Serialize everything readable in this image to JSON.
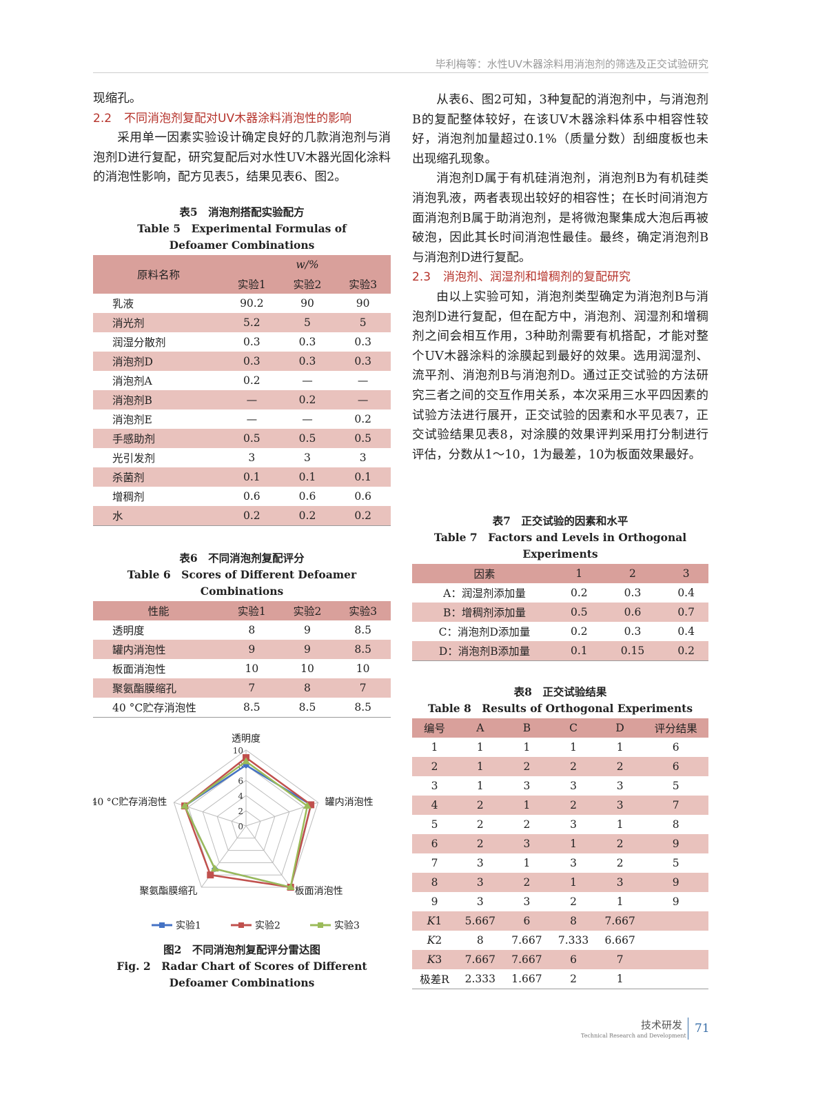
{
  "running_head": "毕利梅等：水性UV木器涂料用消泡剂的筛选及正交试验研究",
  "left": {
    "p0": "现缩孔。",
    "h22_num": "2.2",
    "h22": "不同消泡剂复配对UV木器涂料消泡性的影响",
    "p1": "采用单一因素实验设计确定良好的几款消泡剂与消泡剂D进行复配，研究复配后对水性UV木器光固化涂料的消泡性影响，配方见表5，结果见表6、图2。"
  },
  "right": {
    "p1": "从表6、图2可知，3种复配的消泡剂中，与消泡剂B的复配整体较好，在该UV木器涂料体系中相容性较好，消泡剂加量超过0.1%（质量分数）刮细度板也未出现缩孔现象。",
    "p2": "消泡剂D属于有机硅消泡剂，消泡剂B为有机硅类消泡乳液，两者表现出较好的相容性；在长时间消泡方面消泡剂B属于助消泡剂，是将微泡聚集成大泡后再被破泡，因此其长时间消泡性最佳。最终，确定消泡剂B与消泡剂D进行复配。",
    "h23_num": "2.3",
    "h23": "消泡剂、润湿剂和增稠剂的复配研究",
    "p3": "由以上实验可知，消泡剂类型确定为消泡剂B与消泡剂D进行复配，但在配方中，消泡剂、润湿剂和增稠剂之间会相互作用，3种助剂需要有机搭配，才能对整个UV木器涂料的涂膜起到最好的效果。选用润湿剂、流平剂、消泡剂B与消泡剂D。通过正交试验的方法研究三者之间的交互作用关系，本次采用三水平四因素的试验方法进行展开，正交试验的因素和水平见表7，正交试验结果见表8，对涂膜的效果评判采用打分制进行评估，分数从1～10，1为最差，10为板面效果最好。"
  },
  "table5": {
    "cap_cn": "表5　消泡剂搭配实验配方",
    "cap_en": "Table 5　Experimental Formulas of Defoamer Combinations",
    "h_name": "原料名称",
    "h_unit": "w/%",
    "cols": [
      "实验1",
      "实验2",
      "实验3"
    ],
    "rows": [
      [
        "乳液",
        "90.2",
        "90",
        "90"
      ],
      [
        "消光剂",
        "5.2",
        "5",
        "5"
      ],
      [
        "润湿分散剂",
        "0.3",
        "0.3",
        "0.3"
      ],
      [
        "消泡剂D",
        "0.3",
        "0.3",
        "0.3"
      ],
      [
        "消泡剂A",
        "0.2",
        "—",
        "—"
      ],
      [
        "消泡剂B",
        "—",
        "0.2",
        "—"
      ],
      [
        "消泡剂E",
        "—",
        "—",
        "0.2"
      ],
      [
        "手感助剂",
        "0.5",
        "0.5",
        "0.5"
      ],
      [
        "光引发剂",
        "3",
        "3",
        "3"
      ],
      [
        "杀菌剂",
        "0.1",
        "0.1",
        "0.1"
      ],
      [
        "增稠剂",
        "0.6",
        "0.6",
        "0.6"
      ],
      [
        "水",
        "0.2",
        "0.2",
        "0.2"
      ]
    ]
  },
  "table6": {
    "cap_cn": "表6　不同消泡剂复配评分",
    "cap_en": "Table 6　Scores of Different Defoamer Combinations",
    "header": [
      "性能",
      "实验1",
      "实验2",
      "实验3"
    ],
    "rows": [
      [
        "透明度",
        "8",
        "9",
        "8.5"
      ],
      [
        "罐内消泡性",
        "9",
        "9",
        "8.5"
      ],
      [
        "板面消泡性",
        "10",
        "10",
        "10"
      ],
      [
        "聚氨酯膜缩孔",
        "7",
        "8",
        "7"
      ],
      [
        "40 °C贮存消泡性",
        "8.5",
        "8.5",
        "8.5"
      ]
    ]
  },
  "table7": {
    "cap_cn": "表7　正交试验的因素和水平",
    "cap_en": "Table 7　Factors and Levels in Orthogonal Experiments",
    "header": [
      "因素",
      "1",
      "2",
      "3"
    ],
    "rows": [
      [
        "A：润湿剂添加量",
        "0.2",
        "0.3",
        "0.4"
      ],
      [
        "B：增稠剂添加量",
        "0.5",
        "0.6",
        "0.7"
      ],
      [
        "C：消泡剂D添加量",
        "0.2",
        "0.3",
        "0.4"
      ],
      [
        "D：消泡剂B添加量",
        "0.1",
        "0.15",
        "0.2"
      ]
    ]
  },
  "table8": {
    "cap_cn": "表8　正交试验结果",
    "cap_en": "Table 8　Results of Orthogonal Experiments",
    "header": [
      "编号",
      "A",
      "B",
      "C",
      "D",
      "评分结果"
    ],
    "rows": [
      [
        "1",
        "1",
        "1",
        "1",
        "1",
        "6"
      ],
      [
        "2",
        "1",
        "2",
        "2",
        "2",
        "6"
      ],
      [
        "3",
        "1",
        "3",
        "3",
        "3",
        "5"
      ],
      [
        "4",
        "2",
        "1",
        "2",
        "3",
        "7"
      ],
      [
        "5",
        "2",
        "2",
        "3",
        "1",
        "8"
      ],
      [
        "6",
        "2",
        "3",
        "1",
        "2",
        "9"
      ],
      [
        "7",
        "3",
        "1",
        "3",
        "2",
        "5"
      ],
      [
        "8",
        "3",
        "2",
        "1",
        "3",
        "9"
      ],
      [
        "9",
        "3",
        "3",
        "2",
        "1",
        "9"
      ],
      [
        "K1",
        "5.667",
        "6",
        "8",
        "7.667",
        ""
      ],
      [
        "K2",
        "8",
        "7.667",
        "7.333",
        "6.667",
        ""
      ],
      [
        "K3",
        "7.667",
        "7.667",
        "6",
        "7",
        ""
      ],
      [
        "极差R",
        "2.333",
        "1.667",
        "2",
        "1",
        ""
      ]
    ]
  },
  "figure2": {
    "cap_cn": "图2　不同消泡剂复配评分雷达图",
    "cap_en": "Fig. 2　Radar Chart of Scores of Different Defoamer Combinations"
  },
  "chart_data": {
    "type": "radar",
    "axes": [
      "透明度",
      "罐内消泡性",
      "板面消泡性",
      "聚氨酯膜缩孔",
      "40 °C贮存消泡性"
    ],
    "ticks": [
      "0",
      "2",
      "4",
      "6",
      "8",
      "10"
    ],
    "range": [
      0,
      10
    ],
    "series": [
      {
        "name": "实验1",
        "color": "#4472c4",
        "values": [
          8,
          9,
          10,
          7,
          8.5
        ]
      },
      {
        "name": "实验2",
        "color": "#c0504d",
        "values": [
          9,
          9,
          10,
          8,
          8.5
        ]
      },
      {
        "name": "实验3",
        "color": "#9bbb59",
        "values": [
          8.5,
          8.5,
          10,
          7,
          8.5
        ]
      }
    ],
    "legend": "bottom"
  },
  "footer": {
    "section_cn": "技术研发",
    "section_en": "Technical Research and Development",
    "page": "71"
  }
}
